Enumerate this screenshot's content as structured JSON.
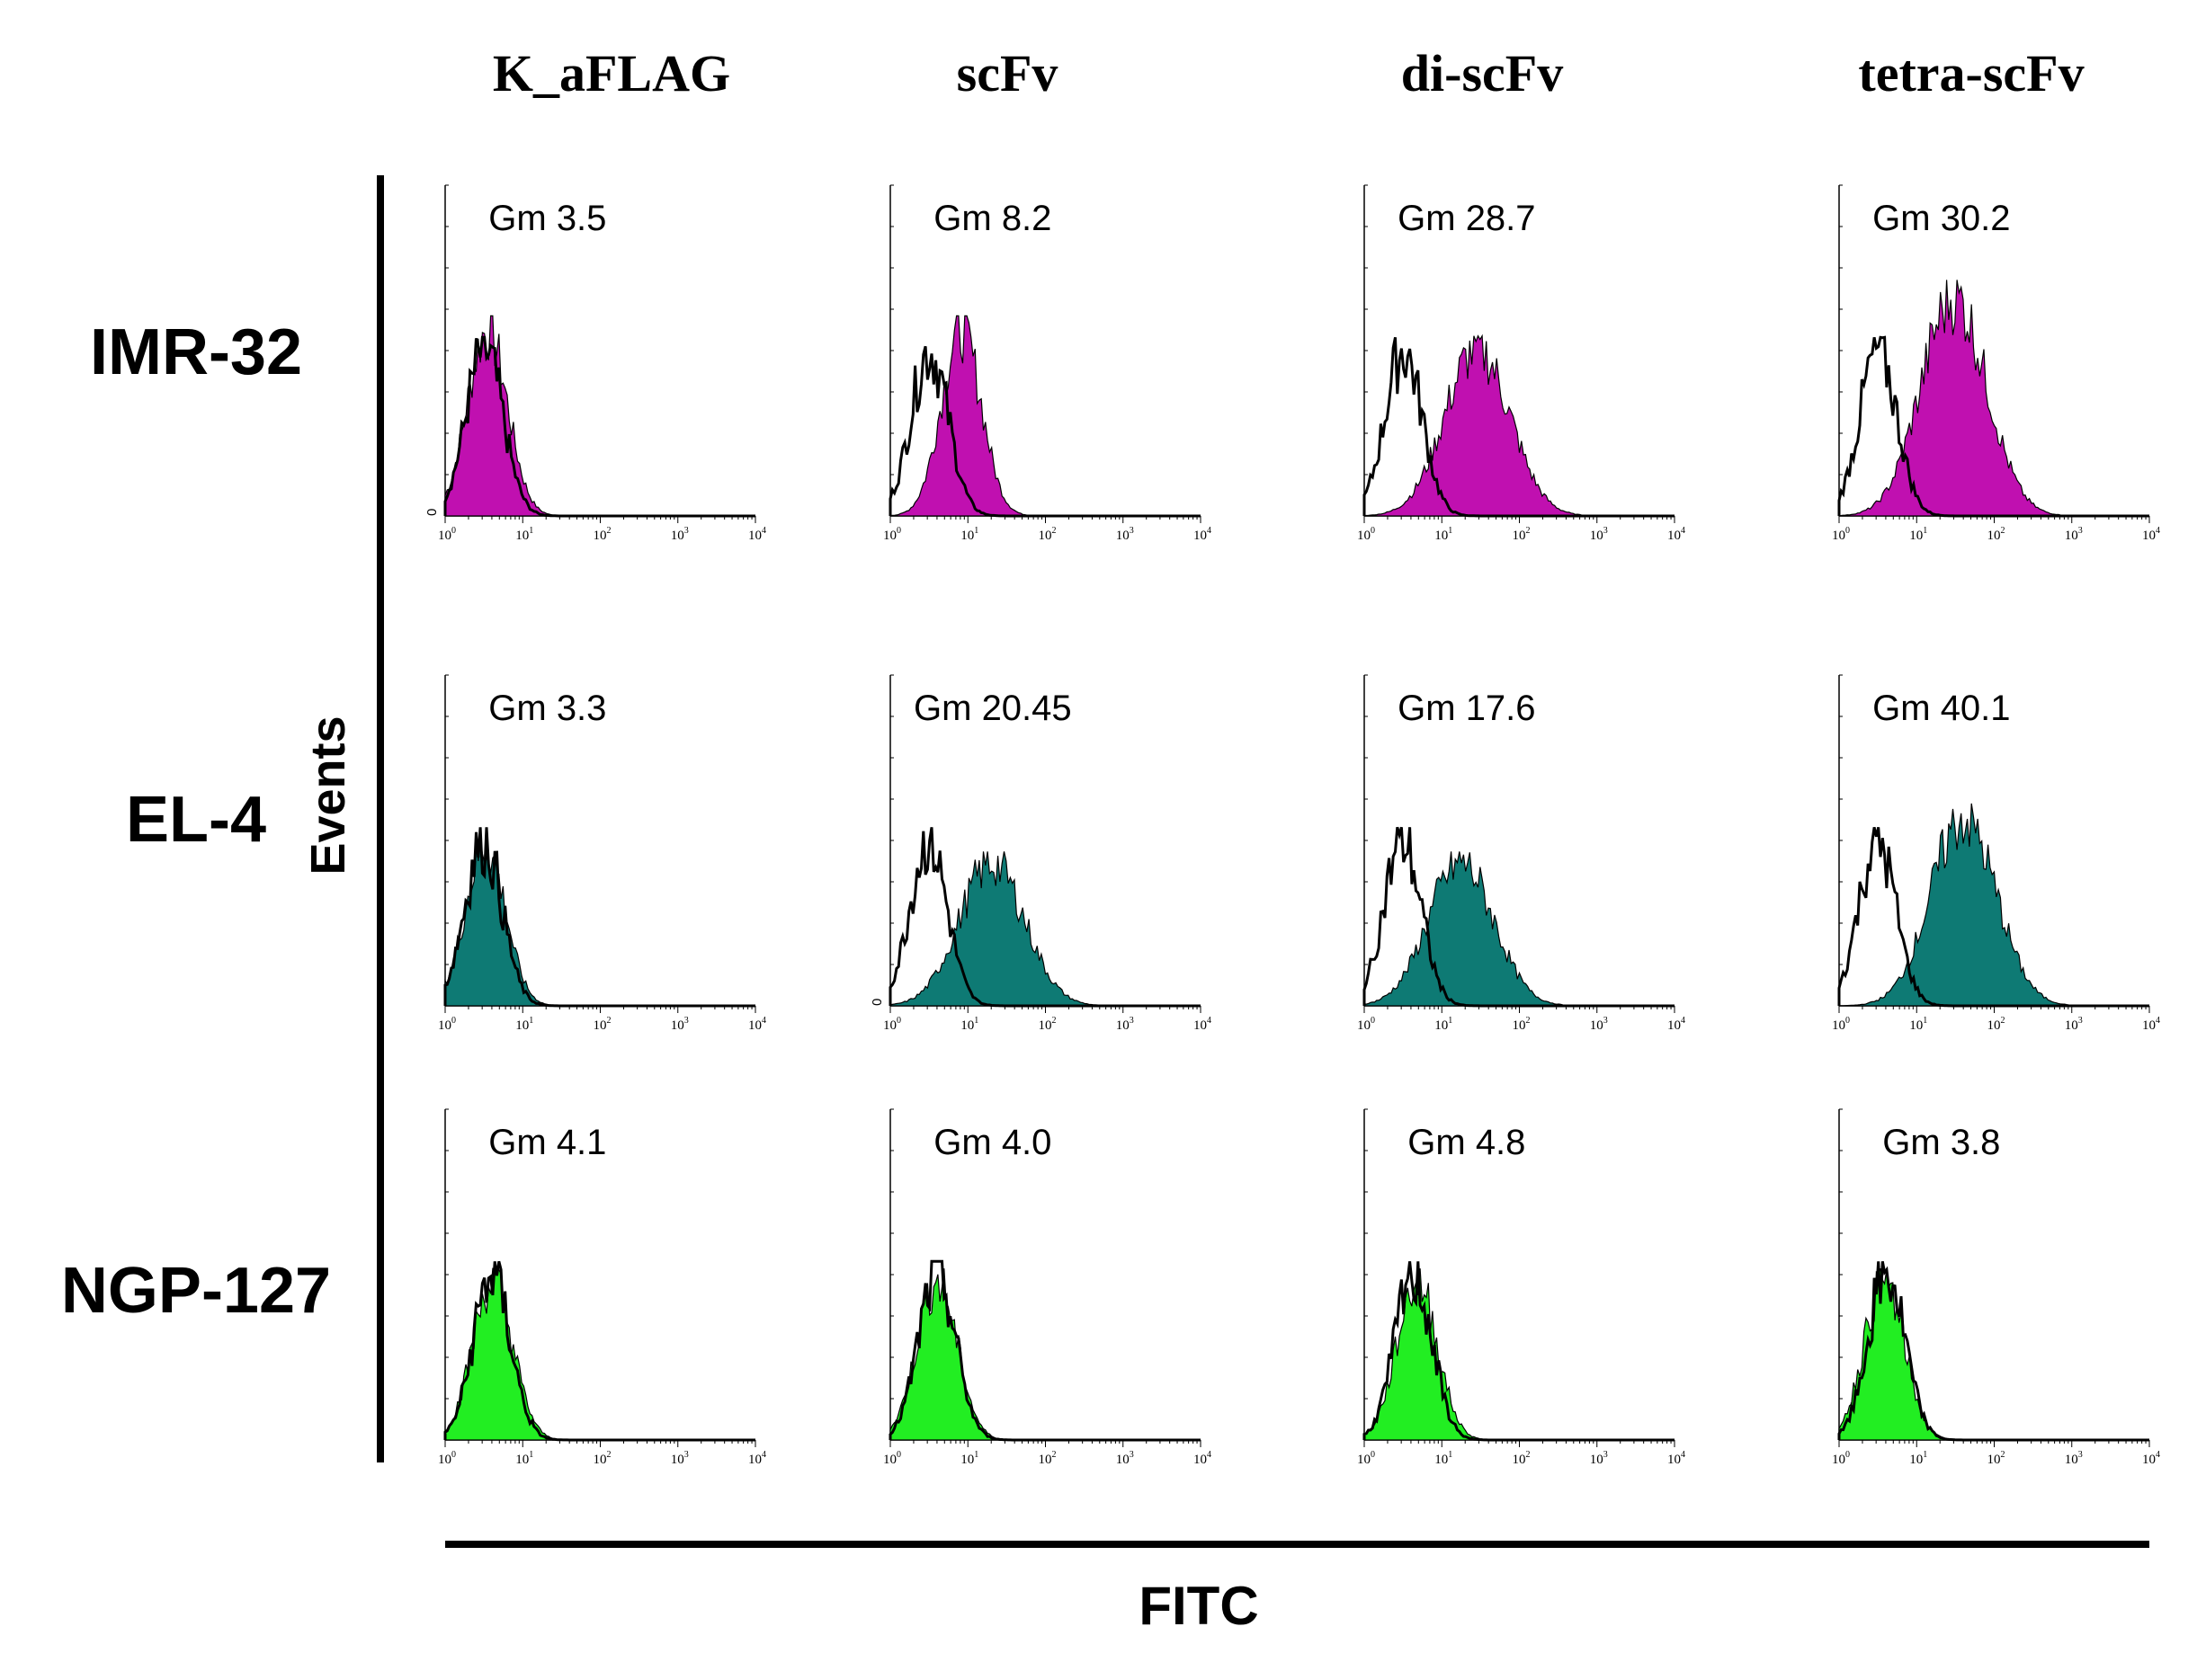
{
  "chart_data": {
    "type": "histogram-grid",
    "title": "",
    "xlabel": "FITC",
    "ylabel": "Events",
    "x_scale": "log",
    "xlim": [
      1,
      10000
    ],
    "x_ticks": [
      "10",
      "10",
      "10",
      "10",
      "10"
    ],
    "x_tick_exponents": [
      "0",
      "1",
      "2",
      "3",
      "4"
    ],
    "zero_label": "0",
    "columns": [
      "K_aFLAG",
      "scFv",
      "di-scFv",
      "tetra-scFv"
    ],
    "rows": [
      {
        "name": "IMR-32",
        "fill_color": "#c010b0",
        "panels": [
          {
            "gm_label": "Gm 3.5",
            "gm": 3.5,
            "control_gm": 3.2,
            "shows_zero": true
          },
          {
            "gm_label": "Gm 8.2",
            "gm": 8.2,
            "control_gm": 3.2,
            "shows_zero": false
          },
          {
            "gm_label": "Gm 28.7",
            "gm": 28.7,
            "control_gm": 3.2,
            "shows_zero": false
          },
          {
            "gm_label": "Gm 30.2",
            "gm": 30.2,
            "control_gm": 3.2,
            "shows_zero": false
          }
        ]
      },
      {
        "name": "EL-4",
        "fill_color": "#0e7a74",
        "panels": [
          {
            "gm_label": "Gm 3.3",
            "gm": 3.3,
            "control_gm": 3.1,
            "shows_zero": false
          },
          {
            "gm_label": "Gm 20.45",
            "gm": 20.45,
            "control_gm": 3.1,
            "shows_zero": true
          },
          {
            "gm_label": "Gm 17.6",
            "gm": 17.6,
            "control_gm": 3.1,
            "shows_zero": false
          },
          {
            "gm_label": "Gm 40.1",
            "gm": 40.1,
            "control_gm": 3.1,
            "shows_zero": false
          }
        ]
      },
      {
        "name": "NGP-127",
        "fill_color": "#22ee22",
        "panels": [
          {
            "gm_label": "Gm 4.1",
            "gm": 4.1,
            "control_gm": 4.0,
            "shows_zero": false
          },
          {
            "gm_label": "Gm 4.0",
            "gm": 4.0,
            "control_gm": 4.0,
            "shows_zero": false
          },
          {
            "gm_label": "Gm 4.8",
            "gm": 4.8,
            "control_gm": 4.3,
            "shows_zero": false
          },
          {
            "gm_label": "Gm 3.8",
            "gm": 3.8,
            "control_gm": 4.1,
            "shows_zero": false
          }
        ]
      }
    ],
    "control_color": "#000000"
  }
}
